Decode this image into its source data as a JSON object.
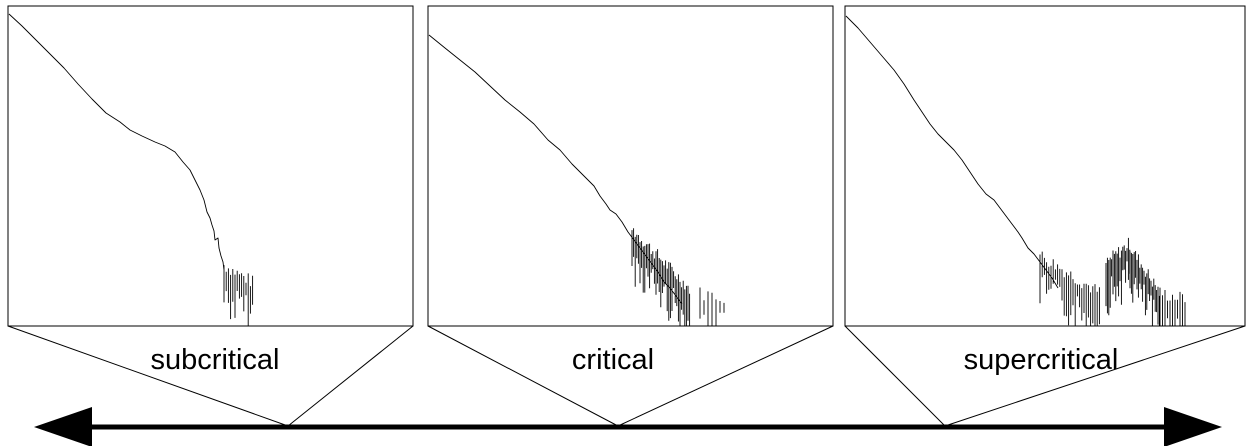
{
  "panels": [
    {
      "id": "subcritical",
      "label": "subcritical"
    },
    {
      "id": "critical",
      "label": "critical"
    },
    {
      "id": "supercritical",
      "label": "supercritical"
    }
  ],
  "axis": {
    "style": "double-headed-arrow"
  },
  "colors": {
    "stroke": "#000000",
    "background": "#ffffff"
  }
}
